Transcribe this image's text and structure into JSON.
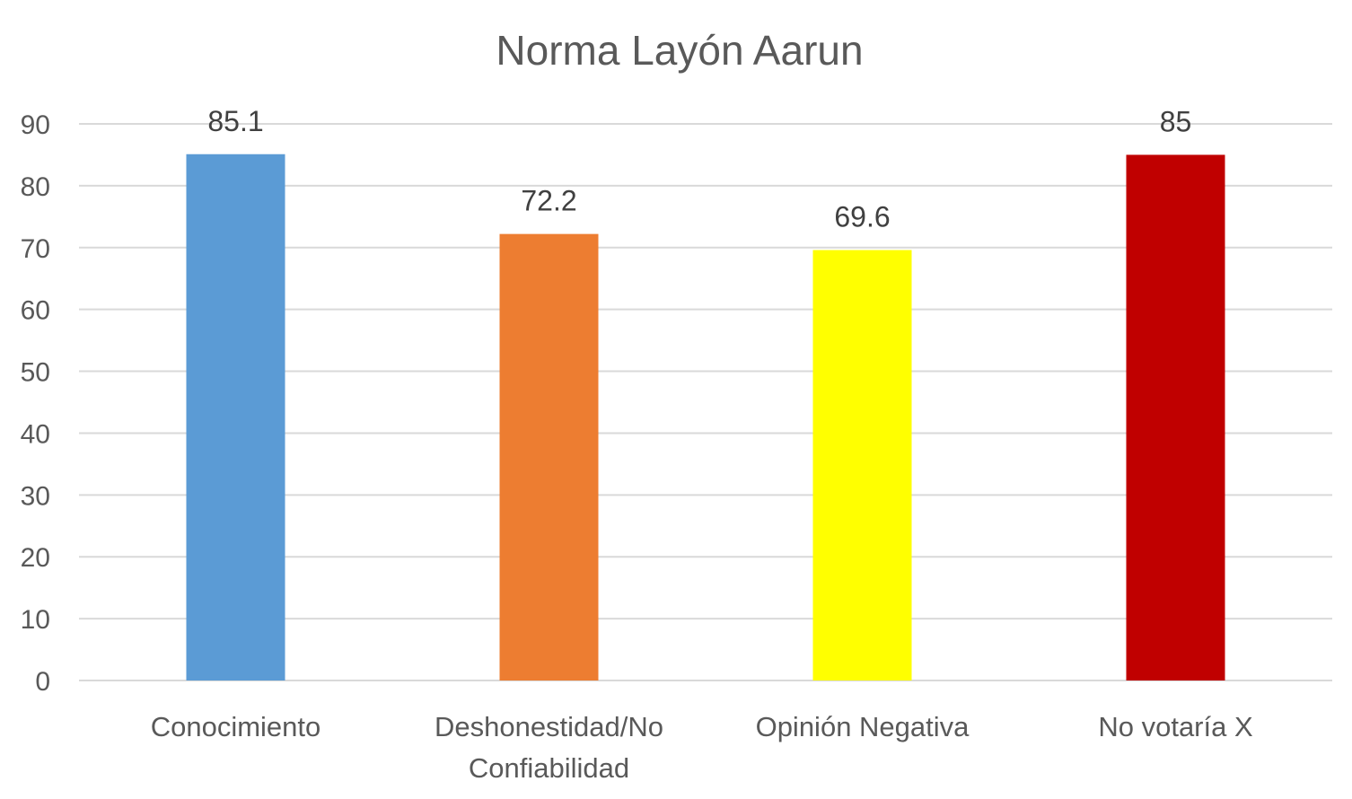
{
  "chart_data": {
    "type": "bar",
    "title": "Norma Layón Aarun",
    "categories": [
      [
        "Conocimiento"
      ],
      [
        "Deshonestidad/No",
        "Confiabilidad"
      ],
      [
        "Opinión Negativa"
      ],
      [
        "No votaría X"
      ]
    ],
    "values": [
      85.1,
      72.2,
      69.6,
      85
    ],
    "data_labels": [
      "85.1",
      "72.2",
      "69.6",
      "85"
    ],
    "colors": [
      "#5b9bd5",
      "#ed7d31",
      "#ffff00",
      "#c00000"
    ],
    "ylim": [
      0,
      90
    ],
    "yticks": [
      0,
      10,
      20,
      30,
      40,
      50,
      60,
      70,
      80,
      90
    ],
    "grid": true,
    "legend": "none",
    "xlabel": "",
    "ylabel": ""
  }
}
